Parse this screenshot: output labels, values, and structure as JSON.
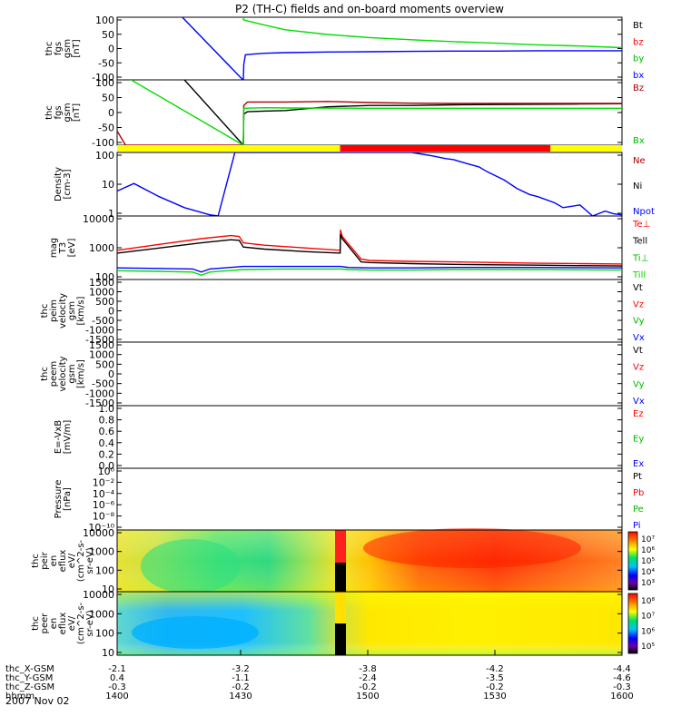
{
  "title": "P2 (TH-C) fields and on-board moments overview",
  "date_label": "2007 Nov 02",
  "colors": {
    "black": "#000000",
    "red": "#ff0000",
    "green": "#00dd00",
    "blue": "#0000ff",
    "darkred": "#aa0000",
    "yellow": "#ffff00"
  },
  "chart_data": [
    {
      "type": "line",
      "panel": "fgs",
      "ylabel": [
        "thc",
        "fgs",
        "gsm",
        "[nT]"
      ],
      "ylim": [
        -100,
        100
      ],
      "yticks": [
        "100",
        "50",
        "0",
        "-50",
        "-100"
      ],
      "legend": [
        {
          "label": "Bt",
          "color": "#000000"
        },
        {
          "label": "bz",
          "color": "#ff0000"
        },
        {
          "label": "by",
          "color": "#00bb00"
        },
        {
          "label": "bx",
          "color": "#0000ff"
        }
      ],
      "xrange": [
        0,
        120
      ],
      "series": [
        {
          "name": "Bt",
          "color": "#000000",
          "x": [
            30.0,
            30.0
          ],
          "y": [
            100,
            100
          ]
        },
        {
          "name": "by",
          "color": "#00dd00",
          "x": [
            30.0,
            30.05,
            31,
            35,
            40,
            50,
            60,
            70,
            80,
            90,
            100,
            110,
            120
          ],
          "y": [
            100,
            92,
            88,
            75,
            60,
            45,
            35,
            28,
            22,
            17,
            12,
            8,
            3
          ]
        },
        {
          "name": "bx",
          "color": "#0000ff",
          "x": [
            15.5,
            29.9,
            30.0,
            30.1,
            30.5,
            32,
            35,
            40,
            50,
            60,
            70,
            80,
            90,
            100,
            110,
            120
          ],
          "y": [
            100,
            -100,
            -100,
            -50,
            -20,
            -18,
            -15,
            -13,
            -11,
            -10,
            -9,
            -8,
            -8,
            -7,
            -7,
            -7
          ]
        }
      ]
    },
    {
      "type": "line",
      "panel": "fgs-gse",
      "ylabel": [
        "thc",
        "fgs",
        "gsm",
        "[nT]"
      ],
      "ylim": [
        -130,
        100
      ],
      "yticks": [
        "100",
        "50",
        "0",
        "-50",
        "-100"
      ],
      "legend": [
        {
          "label": "Bz",
          "color": "#aa0000"
        },
        {
          "label": "Bx",
          "color": "#00bb00"
        }
      ],
      "xrange": [
        0,
        120
      ],
      "series": [
        {
          "name": "Bt",
          "color": "#000000",
          "x": [
            0,
            16,
            30.0,
            30.1,
            31,
            35,
            40,
            50,
            60,
            70,
            80,
            90,
            100,
            110,
            120
          ],
          "y": [
            200,
            100,
            -130,
            -20,
            -12,
            -10,
            -8,
            5,
            10,
            10,
            12,
            13,
            14,
            15,
            16
          ]
        },
        {
          "name": "Bz",
          "color": "#aa0000",
          "x": [
            0,
            2,
            30.0,
            30.1,
            31,
            35,
            40,
            50,
            60,
            70,
            80,
            90,
            100,
            110,
            120
          ],
          "y": [
            -80,
            -130,
            -130,
            10,
            22,
            22,
            22,
            24,
            20,
            18,
            17,
            17,
            17,
            17,
            17
          ]
        },
        {
          "name": "Bx",
          "color": "#00dd00",
          "x": [
            0,
            1,
            30.0,
            30.1,
            35,
            40,
            60,
            80,
            100,
            120
          ],
          "y": [
            100,
            120,
            -130,
            0,
            2,
            1,
            0,
            0,
            0,
            0
          ]
        }
      ]
    },
    {
      "type": "bar",
      "panel": "mode-bar",
      "segments": [
        {
          "x0": 0,
          "x1": 53,
          "color": "#ffff00"
        },
        {
          "x0": 53,
          "x1": 103,
          "color": "#ff0000"
        },
        {
          "x0": 103,
          "x1": 120,
          "color": "#ffff00"
        }
      ]
    },
    {
      "type": "line",
      "panel": "density",
      "scale": "log",
      "ylabel": [
        "Density",
        "[cm-3]"
      ],
      "ylim": [
        1,
        200
      ],
      "yticks": [
        "100",
        "10",
        "1"
      ],
      "legend": [
        {
          "label": "Ne",
          "color": "#aa0000"
        },
        {
          "label": "Ni",
          "color": "#000000"
        },
        {
          "label": "Npot",
          "color": "#0000ff"
        }
      ],
      "xrange": [
        0,
        120
      ],
      "series": [
        {
          "name": "Npot",
          "color": "#0000ff",
          "x": [
            0,
            4,
            10,
            16,
            22,
            24,
            28,
            70,
            75,
            78,
            80,
            83,
            86,
            88,
            92,
            95,
            98,
            100,
            104,
            106,
            110,
            113,
            116,
            118,
            120
          ],
          "y": [
            8,
            15,
            5,
            2,
            1.1,
            1,
            200,
            200,
            150,
            120,
            110,
            80,
            60,
            40,
            20,
            10,
            6,
            5,
            3,
            2,
            2.5,
            1,
            1.5,
            1.2,
            1.1
          ]
        }
      ]
    },
    {
      "type": "line",
      "panel": "temperature",
      "scale": "log",
      "ylabel": [
        "mag",
        "T3",
        "[eV]"
      ],
      "ylim": [
        100,
        15000
      ],
      "yticks": [
        "10000",
        "1000",
        "100"
      ],
      "legend": [
        {
          "label": "Te⊥",
          "color": "#ff0000"
        },
        {
          "label": "Tell",
          "color": "#000000"
        },
        {
          "label": "Ti⊥",
          "color": "#00bb00"
        },
        {
          "label": "Till",
          "color": "#00dd00"
        }
      ],
      "xrange": [
        0,
        120
      ],
      "series": [
        {
          "name": "Te⊥",
          "color": "#ff0000",
          "x": [
            0,
            10,
            20,
            27,
            29,
            30,
            35,
            45,
            53,
            53.1,
            53.5,
            58,
            60,
            70,
            80,
            90,
            100,
            110,
            120
          ],
          "y": [
            1000,
            1600,
            2500,
            3200,
            3000,
            1800,
            1500,
            1200,
            1000,
            5000,
            3000,
            500,
            450,
            420,
            400,
            380,
            360,
            350,
            340
          ]
        },
        {
          "name": "Tell",
          "color": "#000000",
          "x": [
            0,
            10,
            20,
            27,
            29,
            30,
            35,
            45,
            53,
            53.1,
            53.5,
            58,
            60,
            70,
            80,
            90,
            100,
            110,
            120
          ],
          "y": [
            800,
            1200,
            1800,
            2300,
            2200,
            1300,
            1100,
            900,
            800,
            3500,
            2500,
            400,
            380,
            350,
            330,
            320,
            310,
            300,
            290
          ]
        },
        {
          "name": "Ti⊥",
          "color": "#0000ff",
          "x": [
            0,
            10,
            18,
            20,
            22,
            30,
            40,
            53,
            55,
            60,
            70,
            80,
            100,
            120
          ],
          "y": [
            250,
            240,
            230,
            180,
            230,
            280,
            280,
            280,
            260,
            250,
            250,
            260,
            260,
            250
          ]
        },
        {
          "name": "Till",
          "color": "#00dd00",
          "x": [
            0,
            10,
            18,
            20,
            22,
            30,
            40,
            53,
            55,
            60,
            70,
            80,
            100,
            120
          ],
          "y": [
            200,
            190,
            180,
            140,
            180,
            220,
            230,
            230,
            220,
            210,
            210,
            220,
            220,
            210
          ]
        }
      ]
    },
    {
      "type": "line",
      "panel": "peim-velocity",
      "ylabel": [
        "thc",
        "peim",
        "velocity",
        "gsm",
        "[km/s]"
      ],
      "ylim": [
        -1500,
        1500
      ],
      "yticks": [
        "1500",
        "1000",
        "500",
        "0",
        "-500",
        "-1000",
        "-1500"
      ],
      "legend": [
        {
          "label": "Vt",
          "color": "#000000"
        },
        {
          "label": "Vz",
          "color": "#ff0000"
        },
        {
          "label": "Vy",
          "color": "#00bb00"
        },
        {
          "label": "Vx",
          "color": "#0000ff"
        }
      ],
      "series": []
    },
    {
      "type": "line",
      "panel": "peem-velocity",
      "ylabel": [
        "thc",
        "peem",
        "velocity",
        "gsm",
        "[km/s]"
      ],
      "ylim": [
        -1500,
        1500
      ],
      "yticks": [
        "1500",
        "1000",
        "500",
        "0",
        "-500",
        "-1000",
        "-1500"
      ],
      "legend": [
        {
          "label": "Vt",
          "color": "#000000"
        },
        {
          "label": "Vz",
          "color": "#ff0000"
        },
        {
          "label": "Vy",
          "color": "#00bb00"
        },
        {
          "label": "Vx",
          "color": "#0000ff"
        }
      ],
      "series": []
    },
    {
      "type": "line",
      "panel": "efield",
      "ylabel": [
        "E=-VxB",
        "[mV/m]"
      ],
      "ylim": [
        0,
        1
      ],
      "yticks": [
        "1.0",
        "0.8",
        "0.6",
        "0.4",
        "0.2",
        "0.0"
      ],
      "legend": [
        {
          "label": "Ez",
          "color": "#ff0000"
        },
        {
          "label": "Ey",
          "color": "#00bb00"
        },
        {
          "label": "Ex",
          "color": "#0000ff"
        }
      ],
      "series": []
    },
    {
      "type": "line",
      "panel": "pressure",
      "scale": "log",
      "ylabel": [
        "Pressure",
        "[nPa]"
      ],
      "yticks": [
        "10⁰",
        "10⁻²",
        "10⁻⁴",
        "10⁻⁶",
        "10⁻⁸",
        "10⁻¹⁰"
      ],
      "legend": [
        {
          "label": "Pt",
          "color": "#000000"
        },
        {
          "label": "Pb",
          "color": "#ff0000"
        },
        {
          "label": "Pe",
          "color": "#00bb00"
        },
        {
          "label": "Pi",
          "color": "#0000ff"
        }
      ],
      "series": []
    },
    {
      "type": "heatmap",
      "panel": "peir-spectrogram",
      "ylabel": [
        "thc",
        "peir",
        "en",
        "eflux",
        "eV/",
        "(cm^2-s-",
        "sr-eV)"
      ],
      "yticks": [
        "10000",
        "1000",
        "100",
        "10"
      ],
      "colorbar_ticks": [
        "10⁷",
        "10⁶",
        "10⁵",
        "10⁴",
        "10³"
      ]
    },
    {
      "type": "heatmap",
      "panel": "peer-spectrogram",
      "ylabel": [
        "thc",
        "peer",
        "en",
        "eflux",
        "eV/",
        "(cm^2-s-",
        "sr-eV)"
      ],
      "yticks": [
        "10000",
        "1000",
        "100",
        "10"
      ],
      "colorbar_ticks": [
        "10⁸",
        "10⁷",
        "10⁶",
        "10⁵"
      ]
    }
  ],
  "xaxis": {
    "rows": [
      {
        "label": "thc_X-GSM",
        "values": [
          "-2.1",
          "-3.2",
          "-3.8",
          "-4.2",
          "-4.4"
        ]
      },
      {
        "label": "thc_Y-GSM",
        "values": [
          "0.4",
          "-1.1",
          "-2.4",
          "-3.5",
          "-4.6"
        ]
      },
      {
        "label": "thc_Z-GSM",
        "values": [
          "-0.3",
          "-0.2",
          "-0.2",
          "-0.2",
          "-0.3"
        ]
      },
      {
        "label": "hhmm",
        "values": [
          "1400",
          "1430",
          "1500",
          "1530",
          "1600"
        ]
      }
    ]
  }
}
